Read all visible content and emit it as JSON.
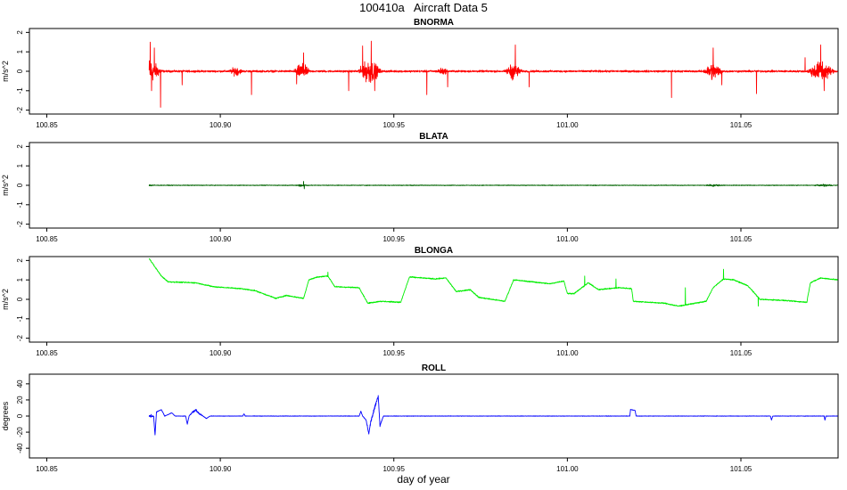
{
  "figure": {
    "title": "100410a   Aircraft Data 5",
    "xlabel": "day of year"
  },
  "chart_data": [
    {
      "type": "line",
      "title": "BNORMA",
      "ylabel": "m/s^2",
      "xlim": [
        100.845,
        101.078
      ],
      "ylim": [
        -2.2,
        2.2
      ],
      "yticks": [
        -2,
        -1,
        0,
        1,
        2
      ],
      "xticks": [
        100.85,
        100.9,
        100.95,
        101.0,
        101.05
      ],
      "xtick_labels": [
        "100.85",
        "100.90",
        "100.95",
        "101.00",
        "101.05"
      ],
      "series": [
        {
          "color": "#ff0000",
          "x_start": 100.8795,
          "x_end": 101.078,
          "baseline": 0,
          "noise_amp": 0.07,
          "bursts": [
            {
              "x": 100.8795,
              "amp": 0.9,
              "width": 0.004
            },
            {
              "x": 100.9045,
              "amp": 0.3,
              "width": 0.002
            },
            {
              "x": 100.9235,
              "amp": 0.55,
              "width": 0.0025
            },
            {
              "x": 100.943,
              "amp": 0.9,
              "width": 0.0035
            },
            {
              "x": 100.964,
              "amp": 0.2,
              "width": 0.002
            },
            {
              "x": 100.9845,
              "amp": 0.6,
              "width": 0.0025
            },
            {
              "x": 101.042,
              "amp": 0.6,
              "width": 0.003
            },
            {
              "x": 101.073,
              "amp": 0.8,
              "width": 0.004
            }
          ],
          "spikes": [
            {
              "x": 100.8798,
              "y": 1.5
            },
            {
              "x": 100.8802,
              "y": -1.0
            },
            {
              "x": 100.881,
              "y": 1.2
            },
            {
              "x": 100.8828,
              "y": -1.85
            },
            {
              "x": 100.889,
              "y": -0.7
            },
            {
              "x": 100.909,
              "y": -1.2
            },
            {
              "x": 100.922,
              "y": -0.65
            },
            {
              "x": 100.924,
              "y": 0.95
            },
            {
              "x": 100.937,
              "y": -1.0
            },
            {
              "x": 100.941,
              "y": 1.3
            },
            {
              "x": 100.9435,
              "y": 1.55
            },
            {
              "x": 100.9445,
              "y": -1.0
            },
            {
              "x": 100.9595,
              "y": -1.2
            },
            {
              "x": 100.9655,
              "y": -0.8
            },
            {
              "x": 100.985,
              "y": 1.35
            },
            {
              "x": 100.989,
              "y": -0.8
            },
            {
              "x": 101.03,
              "y": -1.35
            },
            {
              "x": 101.042,
              "y": 1.2
            },
            {
              "x": 101.0445,
              "y": -0.7
            },
            {
              "x": 101.0545,
              "y": -1.15
            },
            {
              "x": 101.0685,
              "y": 0.7
            },
            {
              "x": 101.073,
              "y": 1.35
            },
            {
              "x": 101.074,
              "y": -1.0
            }
          ]
        }
      ]
    },
    {
      "type": "line",
      "title": "BLATA",
      "ylabel": "m/s^2",
      "xlim": [
        100.845,
        101.078
      ],
      "ylim": [
        -2.2,
        2.2
      ],
      "yticks": [
        -2,
        -1,
        0,
        1,
        2
      ],
      "xticks": [
        100.85,
        100.9,
        100.95,
        101.0,
        101.05
      ],
      "xtick_labels": [
        "100.85",
        "100.90",
        "100.95",
        "101.00",
        "101.05"
      ],
      "series": [
        {
          "color": "#006400",
          "x_start": 100.8795,
          "x_end": 101.078,
          "baseline": 0,
          "noise_amp": 0.025,
          "bursts": [
            {
              "x": 100.8795,
              "amp": 0.05,
              "width": 0.002
            },
            {
              "x": 100.9235,
              "amp": 0.08,
              "width": 0.002
            },
            {
              "x": 101.042,
              "amp": 0.06,
              "width": 0.003
            },
            {
              "x": 101.074,
              "amp": 0.06,
              "width": 0.003
            }
          ],
          "spikes": [
            {
              "x": 100.924,
              "y": 0.2
            },
            {
              "x": 100.9242,
              "y": -0.18
            }
          ]
        }
      ]
    },
    {
      "type": "line",
      "title": "BLONGA",
      "ylabel": "m/s^2",
      "xlim": [
        100.845,
        101.078
      ],
      "ylim": [
        -2.2,
        2.2
      ],
      "yticks": [
        -2,
        -1,
        0,
        1,
        2
      ],
      "xticks": [
        100.85,
        100.9,
        100.95,
        101.0,
        101.05
      ],
      "xtick_labels": [
        "100.85",
        "100.90",
        "100.95",
        "101.00",
        "101.05"
      ],
      "series": [
        {
          "color": "#00ee00",
          "x_start": 100.8795,
          "x_end": 101.078,
          "noise_amp": 0.04,
          "breakpoints": [
            [
              100.8795,
              2.1
            ],
            [
              100.883,
              1.2
            ],
            [
              100.885,
              0.9
            ],
            [
              100.893,
              0.85
            ],
            [
              100.898,
              0.65
            ],
            [
              100.906,
              0.55
            ],
            [
              100.91,
              0.45
            ],
            [
              100.916,
              0.05
            ],
            [
              100.919,
              0.2
            ],
            [
              100.924,
              0.05
            ],
            [
              100.9255,
              1.0
            ],
            [
              100.928,
              1.15
            ],
            [
              100.931,
              1.2
            ],
            [
              100.933,
              0.65
            ],
            [
              100.94,
              0.6
            ],
            [
              100.9425,
              -0.2
            ],
            [
              100.946,
              -0.1
            ],
            [
              100.952,
              -0.15
            ],
            [
              100.9545,
              1.15
            ],
            [
              100.962,
              1.05
            ],
            [
              100.965,
              1.1
            ],
            [
              100.968,
              0.4
            ],
            [
              100.972,
              0.5
            ],
            [
              100.9745,
              0.1
            ],
            [
              100.982,
              -0.1
            ],
            [
              100.9845,
              1.0
            ],
            [
              100.99,
              0.9
            ],
            [
              100.995,
              0.8
            ],
            [
              100.999,
              0.95
            ],
            [
              101.0,
              0.3
            ],
            [
              101.002,
              0.3
            ],
            [
              101.006,
              0.85
            ],
            [
              101.009,
              0.5
            ],
            [
              101.015,
              0.6
            ],
            [
              101.0185,
              0.55
            ],
            [
              101.019,
              -0.1
            ],
            [
              101.028,
              -0.2
            ],
            [
              101.032,
              -0.35
            ],
            [
              101.04,
              -0.1
            ],
            [
              101.042,
              0.6
            ],
            [
              101.045,
              1.05
            ],
            [
              101.048,
              1.0
            ],
            [
              101.052,
              0.7
            ],
            [
              101.0555,
              0.0
            ],
            [
              101.062,
              -0.05
            ],
            [
              101.069,
              -0.15
            ],
            [
              101.07,
              0.85
            ],
            [
              101.073,
              1.1
            ],
            [
              101.078,
              1.0
            ]
          ],
          "spikes": [
            {
              "x": 100.931,
              "y": 1.4
            },
            {
              "x": 101.005,
              "y": 1.2
            },
            {
              "x": 101.014,
              "y": 1.05
            },
            {
              "x": 101.034,
              "y": 0.6
            },
            {
              "x": 101.045,
              "y": 1.55
            },
            {
              "x": 101.055,
              "y": -0.35
            }
          ]
        }
      ]
    },
    {
      "type": "line",
      "title": "ROLL",
      "ylabel": "degrees",
      "xlim": [
        100.845,
        101.078
      ],
      "ylim": [
        -52,
        52
      ],
      "yticks": [
        -40,
        -20,
        0,
        20,
        40
      ],
      "xticks": [
        100.85,
        100.9,
        100.95,
        101.0,
        101.05
      ],
      "xtick_labels": [
        "100.85",
        "100.90",
        "100.95",
        "101.00",
        "101.05"
      ],
      "series": [
        {
          "color": "#0000ff",
          "x_start": 100.8795,
          "x_end": 101.078,
          "baseline": 0,
          "noise_amp": 0.4,
          "bursts": [
            {
              "x": 100.88,
              "amp": 2,
              "width": 0.002
            },
            {
              "x": 100.893,
              "amp": 2,
              "width": 0.002
            },
            {
              "x": 100.944,
              "amp": 3,
              "width": 0.003
            }
          ],
          "breakpoints": [
            [
              100.8795,
              0
            ],
            [
              100.8808,
              0
            ],
            [
              100.8812,
              -24
            ],
            [
              100.8816,
              5
            ],
            [
              100.883,
              8
            ],
            [
              100.884,
              0
            ],
            [
              100.886,
              4
            ],
            [
              100.887,
              0
            ],
            [
              100.89,
              0
            ],
            [
              100.8905,
              -10
            ],
            [
              100.891,
              0
            ],
            [
              100.892,
              5
            ],
            [
              100.893,
              7
            ],
            [
              100.894,
              3
            ],
            [
              100.895,
              0
            ],
            [
              100.896,
              -3
            ],
            [
              100.897,
              0
            ],
            [
              100.9065,
              0
            ],
            [
              100.9068,
              3
            ],
            [
              100.9072,
              0
            ],
            [
              100.94,
              0
            ],
            [
              100.9405,
              6
            ],
            [
              100.941,
              0
            ],
            [
              100.942,
              -5
            ],
            [
              100.9428,
              -22
            ],
            [
              100.9433,
              -8
            ],
            [
              100.944,
              3
            ],
            [
              100.9455,
              25
            ],
            [
              100.946,
              -12
            ],
            [
              100.947,
              0
            ],
            [
              101.018,
              0
            ],
            [
              101.0182,
              8
            ],
            [
              101.0195,
              7
            ],
            [
              101.0198,
              0
            ],
            [
              101.0585,
              0
            ],
            [
              101.0588,
              -5
            ],
            [
              101.0592,
              0
            ],
            [
              101.074,
              0
            ],
            [
              101.0742,
              -5
            ],
            [
              101.0745,
              0
            ],
            [
              101.078,
              0
            ]
          ],
          "spikes": []
        }
      ]
    }
  ]
}
